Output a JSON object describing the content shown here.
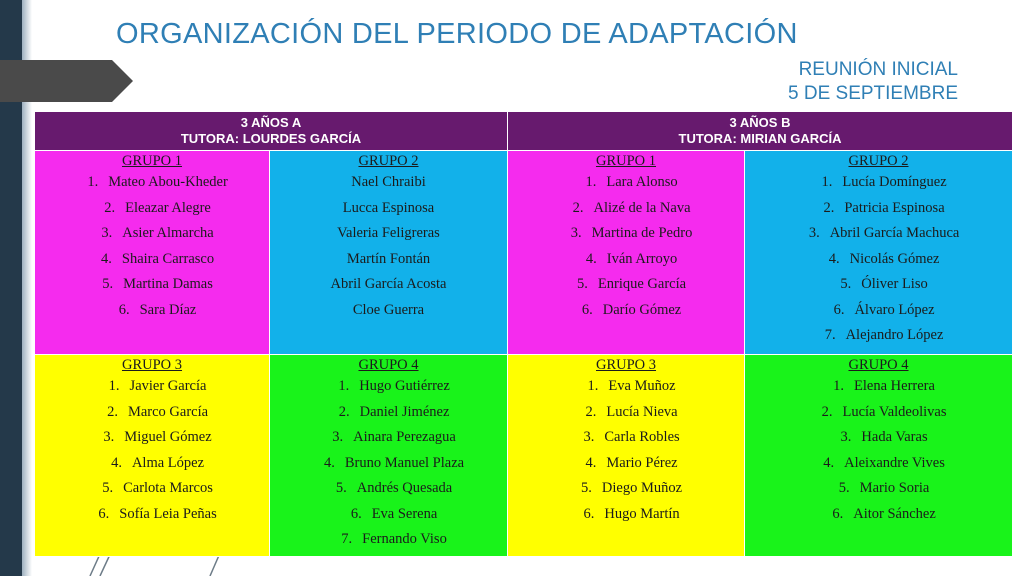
{
  "title": "ORGANIZACIÓN DEL PERIODO DE ADAPTACIÓN",
  "subtitle": {
    "line1": "REUNIÓN INICIAL",
    "line2": "5 DE SEPTIEMBRE"
  },
  "columns": [
    {
      "class_name": "3 AÑOS A",
      "tutor": "TUTORA: LOURDES GARCÍA"
    },
    {
      "class_name": "3 AÑOS B",
      "tutor": "TUTORA: MIRIAN GARCÍA"
    }
  ],
  "groups": {
    "a1": {
      "title": "GRUPO 1",
      "color": "#f52bee",
      "names": [
        "Mateo Abou-Kheder",
        "Eleazar Alegre",
        "Asier Almarcha",
        "Shaira Carrasco",
        "Martina Damas",
        "Sara Díaz"
      ]
    },
    "a2": {
      "title": "GRUPO 2",
      "color": "#12b1ea",
      "names": [
        "Nael Chraibi",
        "Lucca Espinosa",
        "Valeria Feligreras",
        "Martín Fontán",
        "Abril García Acosta",
        "Cloe Guerra"
      ]
    },
    "b1": {
      "title": "GRUPO 1",
      "color": "#f52bee",
      "names": [
        "Lara Alonso",
        "Alizé de la Nava",
        "Martina de Pedro",
        "Iván Arroyo",
        "Enrique García",
        "Darío Gómez"
      ]
    },
    "b2": {
      "title": "GRUPO 2",
      "color": "#12b1ea",
      "names": [
        "Lucía Domínguez",
        "Patricia Espinosa",
        "Abril García Machuca",
        "Nicolás Gómez",
        "Óliver Liso",
        "Álvaro López",
        "Alejandro López"
      ]
    },
    "a3": {
      "title": "GRUPO 3",
      "color": "#ffff00",
      "names": [
        "Javier García",
        "Marco García",
        "Miguel Gómez",
        "Alma López",
        "Carlota Marcos",
        "Sofía Leia Peñas"
      ]
    },
    "a4": {
      "title": "GRUPO 4",
      "color": "#19f31a",
      "names": [
        "Hugo Gutiérrez",
        "Daniel Jiménez",
        "Ainara Perezagua",
        "Bruno Manuel Plaza",
        "Andrés Quesada",
        "Eva Serena",
        "Fernando Viso"
      ]
    },
    "b3": {
      "title": "GRUPO 3",
      "color": "#ffff00",
      "names": [
        "Eva Muñoz",
        "Lucía Nieva",
        "Carla Robles",
        "Mario Pérez",
        "Diego Muñoz",
        "Hugo Martín"
      ]
    },
    "b4": {
      "title": "GRUPO 4",
      "color": "#19f31a",
      "names": [
        "Elena Herrera",
        "Lucía Valdeolivas",
        "Hada Varas",
        "Aleixandre Vives",
        "Mario Soria",
        "Aitor Sánchez"
      ]
    }
  }
}
